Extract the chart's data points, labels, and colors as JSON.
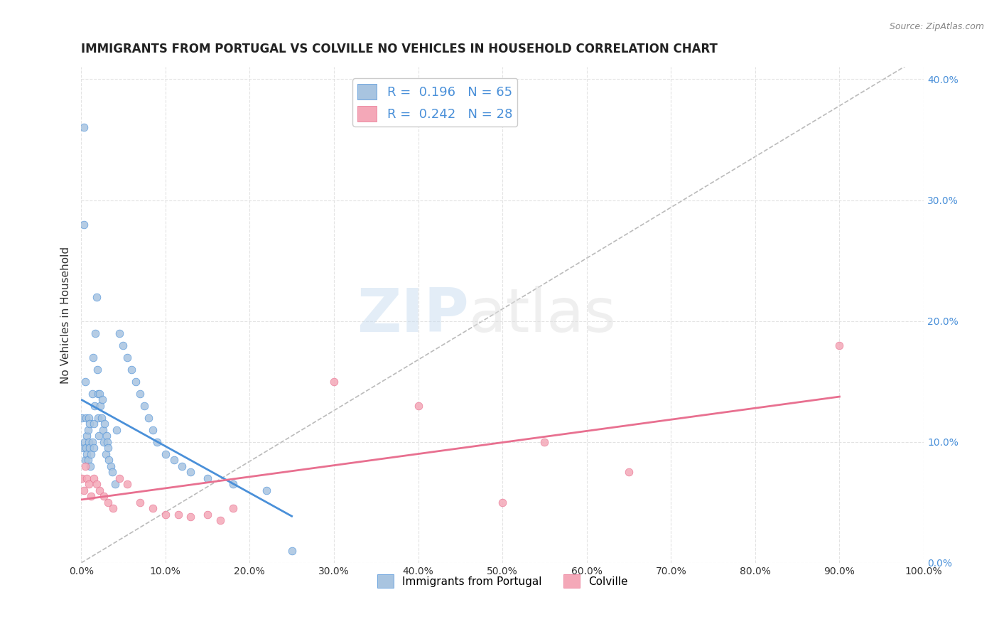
{
  "title": "IMMIGRANTS FROM PORTUGAL VS COLVILLE NO VEHICLES IN HOUSEHOLD CORRELATION CHART",
  "source": "Source: ZipAtlas.com",
  "ylabel": "No Vehicles in Household",
  "background_color": "#ffffff",
  "grid_color": "#dddddd",
  "legend_R1": "0.196",
  "legend_N1": "65",
  "legend_R2": "0.242",
  "legend_N2": "28",
  "series1_color": "#a8c4e0",
  "series2_color": "#f4a8b8",
  "trendline1_color": "#4a90d9",
  "trendline2_color": "#e87090",
  "diag_color": "#bbbbbb",
  "watermark_zip": "ZIP",
  "watermark_atlas": "atlas",
  "blue_x": [
    0.001,
    0.002,
    0.003,
    0.003,
    0.004,
    0.005,
    0.005,
    0.006,
    0.006,
    0.007,
    0.007,
    0.008,
    0.008,
    0.009,
    0.009,
    0.01,
    0.01,
    0.011,
    0.012,
    0.013,
    0.013,
    0.014,
    0.015,
    0.015,
    0.016,
    0.017,
    0.018,
    0.019,
    0.02,
    0.02,
    0.021,
    0.022,
    0.023,
    0.024,
    0.025,
    0.026,
    0.027,
    0.028,
    0.029,
    0.03,
    0.031,
    0.032,
    0.033,
    0.035,
    0.037,
    0.04,
    0.042,
    0.045,
    0.05,
    0.055,
    0.06,
    0.065,
    0.07,
    0.075,
    0.08,
    0.085,
    0.09,
    0.1,
    0.11,
    0.12,
    0.13,
    0.15,
    0.18,
    0.22,
    0.25
  ],
  "blue_y": [
    0.12,
    0.095,
    0.36,
    0.28,
    0.1,
    0.15,
    0.085,
    0.12,
    0.095,
    0.105,
    0.09,
    0.11,
    0.085,
    0.1,
    0.12,
    0.115,
    0.095,
    0.08,
    0.09,
    0.14,
    0.1,
    0.17,
    0.115,
    0.095,
    0.13,
    0.19,
    0.22,
    0.16,
    0.14,
    0.12,
    0.105,
    0.14,
    0.13,
    0.12,
    0.135,
    0.11,
    0.1,
    0.115,
    0.09,
    0.105,
    0.1,
    0.095,
    0.085,
    0.08,
    0.075,
    0.065,
    0.11,
    0.19,
    0.18,
    0.17,
    0.16,
    0.15,
    0.14,
    0.13,
    0.12,
    0.11,
    0.1,
    0.09,
    0.085,
    0.08,
    0.075,
    0.07,
    0.065,
    0.06,
    0.01
  ],
  "pink_x": [
    0.001,
    0.003,
    0.005,
    0.007,
    0.009,
    0.012,
    0.015,
    0.018,
    0.022,
    0.027,
    0.032,
    0.038,
    0.045,
    0.055,
    0.07,
    0.085,
    0.1,
    0.115,
    0.13,
    0.15,
    0.165,
    0.18,
    0.3,
    0.4,
    0.5,
    0.55,
    0.65,
    0.9
  ],
  "pink_y": [
    0.07,
    0.06,
    0.08,
    0.07,
    0.065,
    0.055,
    0.07,
    0.065,
    0.06,
    0.055,
    0.05,
    0.045,
    0.07,
    0.065,
    0.05,
    0.045,
    0.04,
    0.04,
    0.038,
    0.04,
    0.035,
    0.045,
    0.15,
    0.13,
    0.05,
    0.1,
    0.075,
    0.18
  ]
}
